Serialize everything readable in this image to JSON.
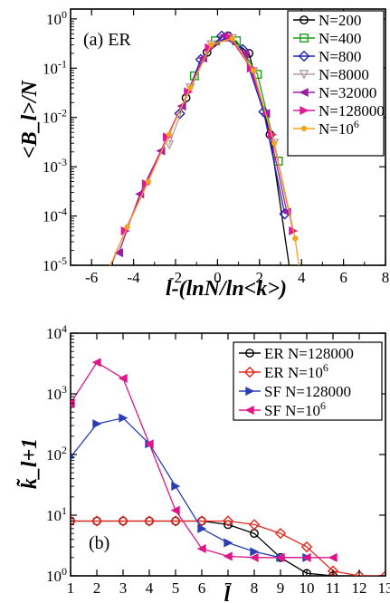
{
  "chart_data": [
    {
      "type": "line",
      "title": "(a) ER",
      "xlabel": "l-(lnN/ln<k>)",
      "ylabel": "<B_l>/N",
      "xlim": [
        -7,
        8
      ],
      "ylim_log10": [
        -5,
        0.2
      ],
      "y_scale": "log",
      "x_ticks": [
        "-6",
        "-4",
        "-2",
        "0",
        "2",
        "4",
        "6",
        "8"
      ],
      "y_ticks": [
        "10^-5",
        "10^-4",
        "10^-3",
        "10^-2",
        "10^-1",
        "10^0"
      ],
      "legend_position": "top-right",
      "series": [
        {
          "name": "N=200",
          "color": "#000000",
          "marker": "circle",
          "x": [
            -1.5,
            -0.5,
            0.5,
            1.5,
            2.5,
            3.5
          ],
          "y": [
            0.025,
            0.21,
            0.45,
            0.2,
            0.0045,
            5.5e-06
          ]
        },
        {
          "name": "N=400",
          "color": "#1aa01a",
          "marker": "square",
          "x": [
            -1.1,
            -0.1,
            0.9,
            1.9,
            2.9
          ],
          "y": [
            0.07,
            0.36,
            0.36,
            0.075,
            0.0013
          ]
        },
        {
          "name": "N=800",
          "color": "#2323b5",
          "marker": "diamond",
          "x": [
            -1.8,
            -0.8,
            0.2,
            1.2,
            2.2,
            3.2
          ],
          "y": [
            0.012,
            0.15,
            0.45,
            0.24,
            0.013,
            0.00011
          ]
        },
        {
          "name": "N=8000",
          "color": "#b89da2",
          "marker": "triangle-down",
          "x": [
            -2.3,
            -1.3,
            -0.3,
            0.7,
            1.7,
            2.7
          ],
          "y": [
            0.0028,
            0.04,
            0.3,
            0.4,
            0.085,
            0.003
          ]
        },
        {
          "name": "N=32000",
          "color": "#9b1fa0",
          "marker": "triangle-left",
          "x": [
            -4.7,
            -3.7,
            -2.7,
            -1.7,
            -0.7,
            0.3,
            1.3,
            2.3,
            3.3
          ],
          "y": [
            1.8e-05,
            0.00028,
            0.0021,
            0.017,
            0.16,
            0.46,
            0.2,
            0.012,
            0.00012
          ]
        },
        {
          "name": "N=128000",
          "color": "#e0189a",
          "marker": "triangle-right",
          "x": [
            -5.4,
            -4.4,
            -3.4,
            -2.4,
            -1.4,
            -0.4,
            0.6,
            1.6,
            2.6,
            3.6
          ],
          "y": [
            4.5e-06,
            5e-05,
            0.00045,
            0.004,
            0.033,
            0.26,
            0.42,
            0.1,
            0.0045,
            5e-05
          ]
        },
        {
          "name": "N=10^6",
          "color": "#f3a41f",
          "marker": "dot",
          "x": [
            -6.3,
            -5.3,
            -4.3,
            -3.3,
            -2.3,
            -1.3,
            -0.3,
            0.7,
            1.7,
            2.7,
            3.7,
            4.2
          ],
          "y": [
            9e-07,
            6.5e-06,
            6e-05,
            0.0005,
            0.0045,
            0.04,
            0.3,
            0.4,
            0.09,
            0.003,
            3.5e-05,
            9e-07
          ]
        }
      ]
    },
    {
      "type": "line",
      "title": "(b)",
      "xlabel": "l",
      "ylabel": "k̃_l+1",
      "xlim": [
        1,
        13
      ],
      "ylim_log10": [
        0,
        4
      ],
      "y_scale": "log",
      "x_ticks": [
        "1",
        "2",
        "3",
        "4",
        "5",
        "6",
        "7",
        "8",
        "9",
        "10",
        "11",
        "12",
        "13"
      ],
      "y_ticks": [
        "10^0",
        "10^1",
        "10^2",
        "10^3",
        "10^4"
      ],
      "legend_position": "top-right",
      "series": [
        {
          "name": "ER N=128000",
          "color": "#000000",
          "marker": "circle",
          "x": [
            1,
            2,
            3,
            4,
            5,
            6,
            7,
            8,
            9,
            10,
            11
          ],
          "y": [
            8,
            8,
            8,
            8,
            8,
            8,
            7,
            5,
            2,
            1.1,
            1
          ]
        },
        {
          "name": "ER N=10^6",
          "color": "#e8261c",
          "marker": "diamond",
          "x": [
            1,
            2,
            3,
            4,
            5,
            6,
            7,
            8,
            9,
            10,
            11,
            12,
            13
          ],
          "y": [
            8,
            8,
            8,
            8,
            8,
            8,
            8,
            7,
            5,
            3,
            1.2,
            1,
            1
          ]
        },
        {
          "name": "SF N=128000",
          "color": "#2b3fb5",
          "marker": "triangle-right",
          "x": [
            1,
            2,
            3,
            4,
            5,
            6,
            7,
            8,
            9,
            10
          ],
          "y": [
            90,
            320,
            400,
            150,
            30,
            6,
            3.5,
            2.5,
            2,
            2
          ]
        },
        {
          "name": "SF N=10^6",
          "color": "#e01589",
          "marker": "triangle-left",
          "x": [
            1,
            2,
            3,
            4,
            5,
            6,
            7,
            8,
            9,
            10,
            11
          ],
          "y": [
            700,
            3300,
            1800,
            150,
            12,
            2.8,
            2.1,
            2,
            2,
            2,
            2
          ]
        }
      ]
    }
  ]
}
